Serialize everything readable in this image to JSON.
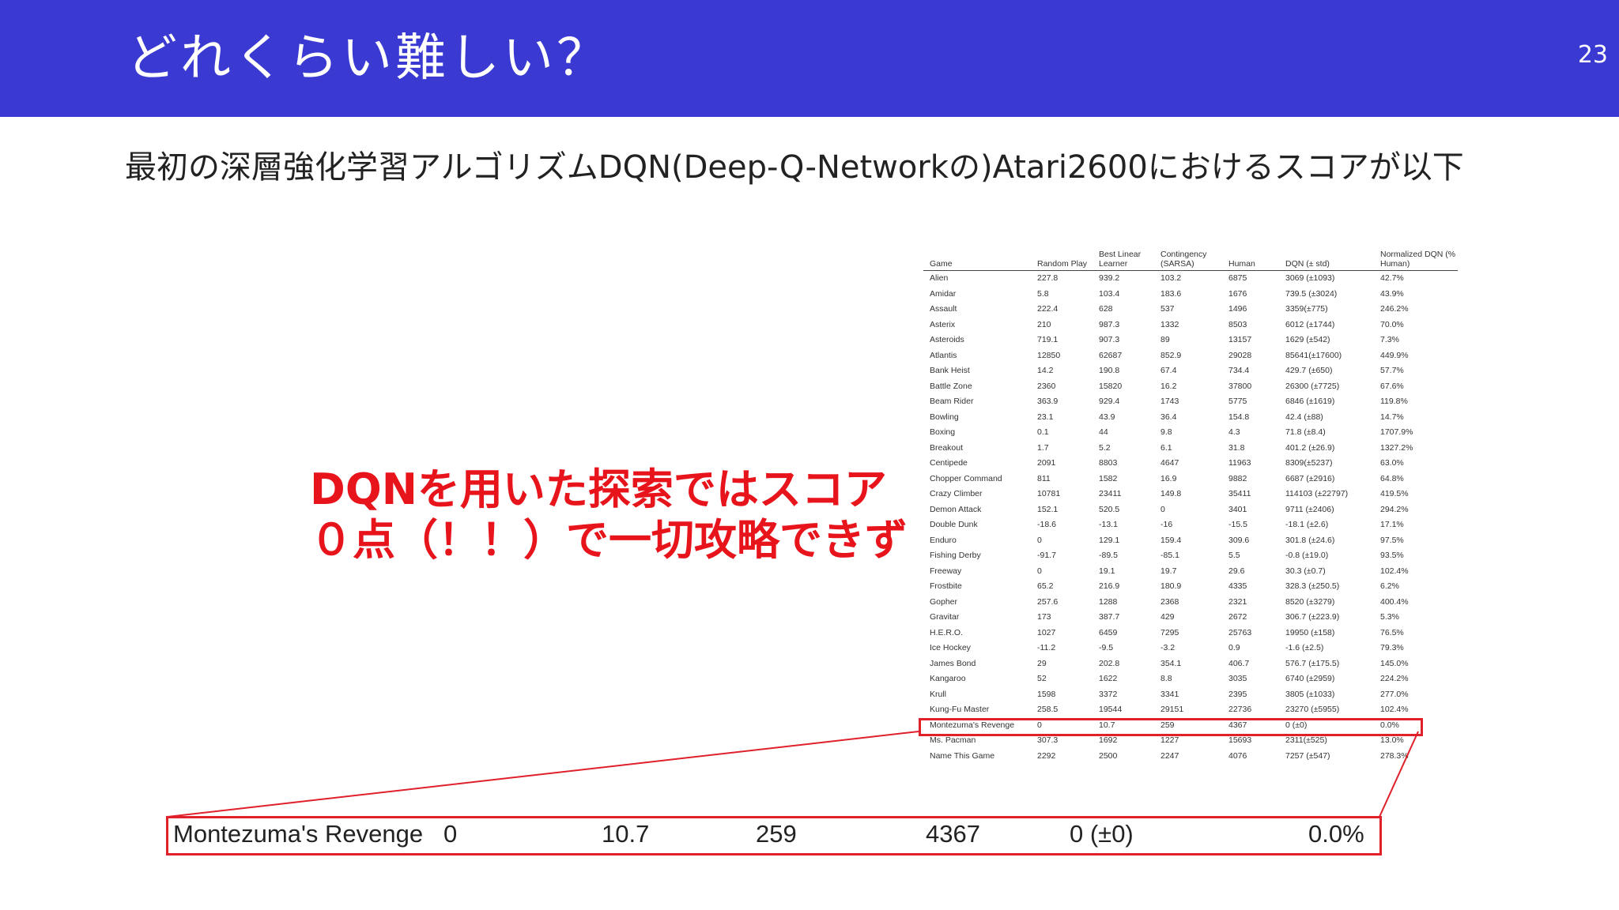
{
  "slide": {
    "title": "どれくらい難しい？",
    "page_number": "23",
    "intro": "最初の深層強化学習アルゴリズムDQN(Deep-Q-Networkの)Atari2600におけるスコアが以下",
    "annotation": "DQNを用いた探索ではスコア０点（！！）で一切攻略できず",
    "accent_color": "#3a3ad2",
    "highlight_color": "#e0202a"
  },
  "score_table": {
    "headers": [
      "Game",
      "Random Play",
      "Best Linear Learner",
      "Contingency (SARSA)",
      "Human",
      "DQN (± std)",
      "Normalized DQN (% Human)"
    ],
    "rows": [
      [
        "Alien",
        "227.8",
        "939.2",
        "103.2",
        "6875",
        "3069 (±1093)",
        "42.7%"
      ],
      [
        "Amidar",
        "5.8",
        "103.4",
        "183.6",
        "1676",
        "739.5 (±3024)",
        "43.9%"
      ],
      [
        "Assault",
        "222.4",
        "628",
        "537",
        "1496",
        "3359(±775)",
        "246.2%"
      ],
      [
        "Asterix",
        "210",
        "987.3",
        "1332",
        "8503",
        "6012 (±1744)",
        "70.0%"
      ],
      [
        "Asteroids",
        "719.1",
        "907.3",
        "89",
        "13157",
        "1629 (±542)",
        "7.3%"
      ],
      [
        "Atlantis",
        "12850",
        "62687",
        "852.9",
        "29028",
        "85641(±17600)",
        "449.9%"
      ],
      [
        "Bank Heist",
        "14.2",
        "190.8",
        "67.4",
        "734.4",
        "429.7 (±650)",
        "57.7%"
      ],
      [
        "Battle Zone",
        "2360",
        "15820",
        "16.2",
        "37800",
        "26300 (±7725)",
        "67.6%"
      ],
      [
        "Beam Rider",
        "363.9",
        "929.4",
        "1743",
        "5775",
        "6846 (±1619)",
        "119.8%"
      ],
      [
        "Bowling",
        "23.1",
        "43.9",
        "36.4",
        "154.8",
        "42.4 (±88)",
        "14.7%"
      ],
      [
        "Boxing",
        "0.1",
        "44",
        "9.8",
        "4.3",
        "71.8 (±8.4)",
        "1707.9%"
      ],
      [
        "Breakout",
        "1.7",
        "5.2",
        "6.1",
        "31.8",
        "401.2 (±26.9)",
        "1327.2%"
      ],
      [
        "Centipede",
        "2091",
        "8803",
        "4647",
        "11963",
        "8309(±5237)",
        "63.0%"
      ],
      [
        "Chopper Command",
        "811",
        "1582",
        "16.9",
        "9882",
        "6687 (±2916)",
        "64.8%"
      ],
      [
        "Crazy Climber",
        "10781",
        "23411",
        "149.8",
        "35411",
        "114103 (±22797)",
        "419.5%"
      ],
      [
        "Demon Attack",
        "152.1",
        "520.5",
        "0",
        "3401",
        "9711 (±2406)",
        "294.2%"
      ],
      [
        "Double Dunk",
        "-18.6",
        "-13.1",
        "-16",
        "-15.5",
        "-18.1 (±2.6)",
        "17.1%"
      ],
      [
        "Enduro",
        "0",
        "129.1",
        "159.4",
        "309.6",
        "301.8 (±24.6)",
        "97.5%"
      ],
      [
        "Fishing Derby",
        "-91.7",
        "-89.5",
        "-85.1",
        "5.5",
        "-0.8 (±19.0)",
        "93.5%"
      ],
      [
        "Freeway",
        "0",
        "19.1",
        "19.7",
        "29.6",
        "30.3 (±0.7)",
        "102.4%"
      ],
      [
        "Frostbite",
        "65.2",
        "216.9",
        "180.9",
        "4335",
        "328.3 (±250.5)",
        "6.2%"
      ],
      [
        "Gopher",
        "257.6",
        "1288",
        "2368",
        "2321",
        "8520 (±3279)",
        "400.4%"
      ],
      [
        "Gravitar",
        "173",
        "387.7",
        "429",
        "2672",
        "306.7 (±223.9)",
        "5.3%"
      ],
      [
        "H.E.R.O.",
        "1027",
        "6459",
        "7295",
        "25763",
        "19950 (±158)",
        "76.5%"
      ],
      [
        "Ice Hockey",
        "-11.2",
        "-9.5",
        "-3.2",
        "0.9",
        "-1.6 (±2.5)",
        "79.3%"
      ],
      [
        "James Bond",
        "29",
        "202.8",
        "354.1",
        "406.7",
        "576.7 (±175.5)",
        "145.0%"
      ],
      [
        "Kangaroo",
        "52",
        "1622",
        "8.8",
        "3035",
        "6740 (±2959)",
        "224.2%"
      ],
      [
        "Krull",
        "1598",
        "3372",
        "3341",
        "2395",
        "3805 (±1033)",
        "277.0%"
      ],
      [
        "Kung-Fu Master",
        "258.5",
        "19544",
        "29151",
        "22736",
        "23270 (±5955)",
        "102.4%"
      ],
      [
        "Montezuma's Revenge",
        "0",
        "10.7",
        "259",
        "4367",
        "0 (±0)",
        "0.0%"
      ],
      [
        "Ms. Pacman",
        "307.3",
        "1692",
        "1227",
        "15693",
        "2311(±525)",
        "13.0%"
      ],
      [
        "Name This Game",
        "2292",
        "2500",
        "2247",
        "4076",
        "7257 (±547)",
        "278.3%"
      ]
    ]
  },
  "zoom_row": {
    "game": "Montezuma's Revenge",
    "random": "0",
    "linear": "10.7",
    "sarsa": "259",
    "human": "4367",
    "dqn": "0 (±0)",
    "normalized": "0.0%"
  }
}
